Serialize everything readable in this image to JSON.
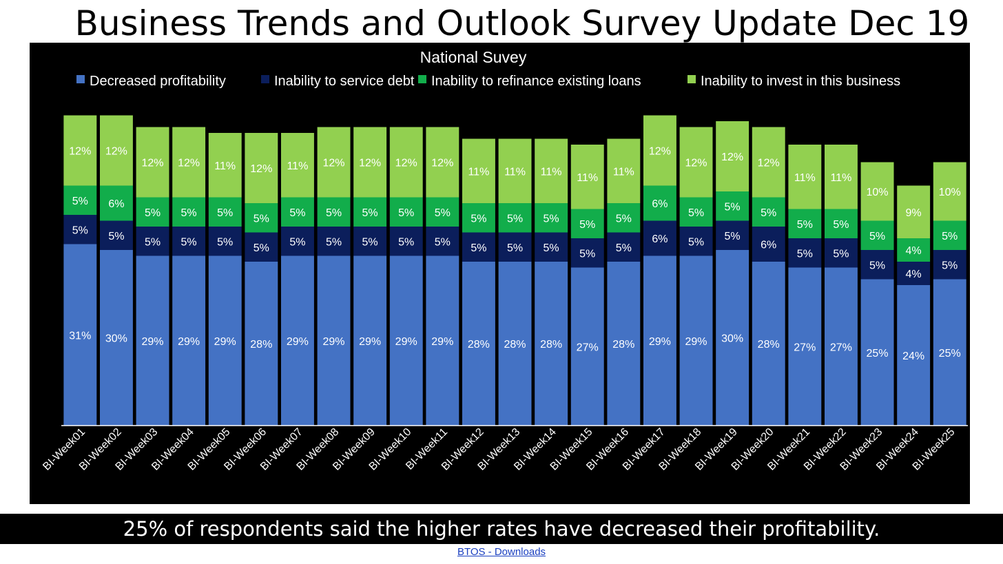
{
  "header": {
    "title": "Business Trends and Outlook Survey  Update Dec 19"
  },
  "footer": {
    "caption": "25% of respondents said the higher rates have decreased their profitability.",
    "link_text": "BTOS - Downloads"
  },
  "chart_data": {
    "type": "bar",
    "stacked": true,
    "title": "National Suvey",
    "legend_position": "top",
    "categories": [
      "BI-Week01",
      "BI-Week02",
      "BI-Week03",
      "BI-Week04",
      "BI-Week05",
      "BI-Week06",
      "BI-Week07",
      "BI-Week08",
      "BI-Week09",
      "BI-Week10",
      "BI-Week11",
      "BI-Week12",
      "BI-Week13",
      "BI-Week14",
      "BI-Week15",
      "BI-Week16",
      "BI-Week17",
      "BI-Week18",
      "BI-Week19",
      "BI-Week20",
      "BI-Week21",
      "BI-Week22",
      "BI-Week23",
      "BI-Week24",
      "BI-Week25"
    ],
    "series": [
      {
        "name": "Decreased profitability",
        "color": "#4472C4",
        "values": [
          31,
          30,
          29,
          29,
          29,
          28,
          29,
          29,
          29,
          29,
          29,
          28,
          28,
          28,
          27,
          28,
          29,
          29,
          30,
          28,
          27,
          27,
          25,
          24,
          25
        ],
        "labels": [
          "31%",
          "30%",
          "29%",
          "29%",
          "29%",
          "28%",
          "29%",
          "29%",
          "29%",
          "29%",
          "29%",
          "28%",
          "28%",
          "28%",
          "27%",
          "28%",
          "29%",
          "29%",
          "30%",
          "28%",
          "27%",
          "27%",
          "25%",
          "24%",
          "25%"
        ]
      },
      {
        "name": "Inability to service debt",
        "color": "#0B1E5B",
        "values": [
          5,
          5,
          5,
          5,
          5,
          5,
          5,
          5,
          5,
          5,
          5,
          5,
          5,
          5,
          5,
          5,
          6,
          5,
          5,
          6,
          5,
          5,
          5,
          4,
          5
        ],
        "labels": [
          "5%",
          "5%",
          "5%",
          "5%",
          "5%",
          "5%",
          "5%",
          "5%",
          "5%",
          "5%",
          "5%",
          "5%",
          "5%",
          "5%",
          "5%",
          "5%",
          "6%",
          "5%",
          "5%",
          "6%",
          "5%",
          "5%",
          "5%",
          "4%",
          "5%"
        ]
      },
      {
        "name": "Inability to refinance existing loans",
        "color": "#12AD4B",
        "values": [
          5,
          6,
          5,
          5,
          5,
          5,
          5,
          5,
          5,
          5,
          5,
          5,
          5,
          5,
          5,
          5,
          6,
          5,
          5,
          5,
          5,
          5,
          5,
          4,
          5
        ],
        "labels": [
          "5%",
          "6%",
          "5%",
          "5%",
          "5%",
          "5%",
          "5%",
          "5%",
          "5%",
          "5%",
          "5%",
          "5%",
          "5%",
          "5%",
          "5%",
          "5%",
          "6%",
          "5%",
          "5%",
          "5%",
          "5%",
          "5%",
          "5%",
          "4%",
          "5%"
        ]
      },
      {
        "name": "Inability to invest in this business",
        "color": "#92D050",
        "values": [
          12,
          12,
          12,
          12,
          11,
          12,
          11,
          12,
          12,
          12,
          12,
          11,
          11,
          11,
          11,
          11,
          12,
          12,
          12,
          12,
          11,
          11,
          10,
          9,
          10
        ],
        "labels": [
          "12%",
          "12%",
          "12%",
          "12%",
          "11%",
          "12%",
          "11%",
          "12%",
          "12%",
          "12%",
          "12%",
          "11%",
          "11%",
          "11%",
          "11%",
          "11%",
          "12%",
          "12%",
          "12%",
          "12%",
          "11%",
          "11%",
          "10%",
          "9%",
          "10%"
        ]
      }
    ],
    "ylim": [
      0,
      55
    ],
    "grid": false
  }
}
